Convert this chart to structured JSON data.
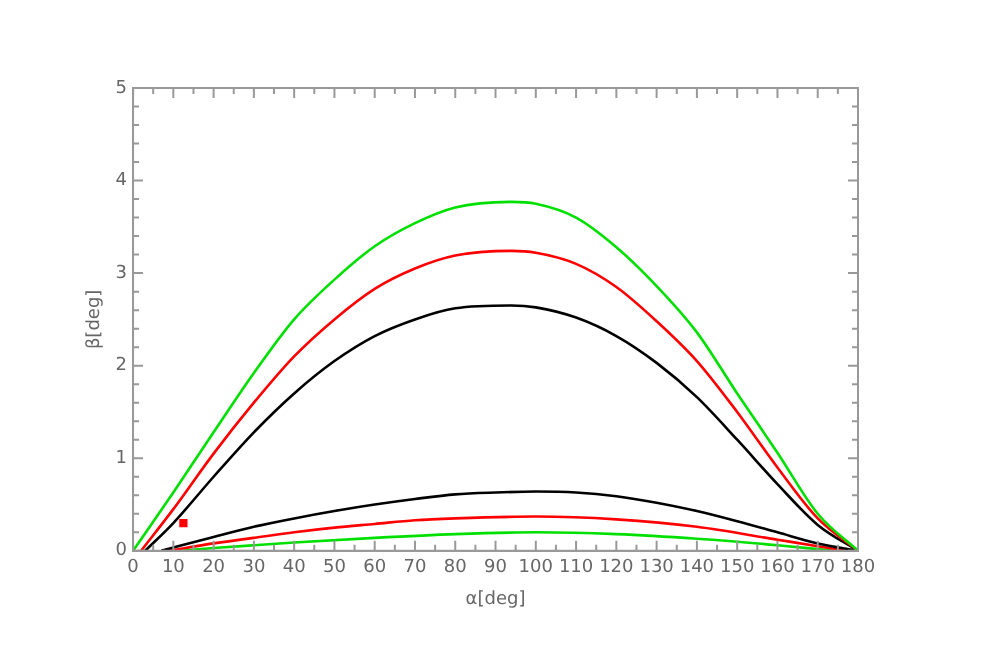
{
  "chart_data": {
    "type": "line",
    "xlabel": "α[deg]",
    "ylabel": "β[deg]",
    "xlim": [
      0,
      180
    ],
    "ylim": [
      0,
      5
    ],
    "xticks": [
      0,
      10,
      20,
      30,
      40,
      50,
      60,
      70,
      80,
      90,
      100,
      110,
      120,
      130,
      140,
      150,
      160,
      170,
      180
    ],
    "yticks": [
      0,
      1,
      2,
      3,
      4,
      5
    ],
    "grid": false,
    "legend": false,
    "marker": "none",
    "line_style": "solid",
    "series": [
      {
        "color": "#00e000",
        "x": [
          0,
          10,
          20,
          30,
          40,
          50,
          60,
          70,
          80,
          94,
          100,
          110,
          120,
          130,
          140,
          150,
          160,
          170,
          180
        ],
        "values": [
          0,
          0.63,
          1.28,
          1.92,
          2.5,
          2.93,
          3.29,
          3.54,
          3.71,
          3.77,
          3.75,
          3.6,
          3.28,
          2.86,
          2.36,
          1.7,
          1.06,
          0.4,
          0
        ]
      },
      {
        "color": "#ff0000",
        "x": [
          2,
          10,
          20,
          30,
          40,
          50,
          60,
          70,
          80,
          94,
          100,
          110,
          120,
          130,
          140,
          150,
          160,
          170,
          180
        ],
        "values": [
          0,
          0.45,
          1.05,
          1.6,
          2.1,
          2.5,
          2.83,
          3.05,
          3.19,
          3.24,
          3.22,
          3.1,
          2.85,
          2.48,
          2.05,
          1.5,
          0.9,
          0.35,
          0
        ]
      },
      {
        "color": "#000000",
        "x": [
          3,
          10,
          20,
          30,
          40,
          50,
          60,
          70,
          80,
          94,
          100,
          110,
          120,
          130,
          140,
          150,
          160,
          170,
          180
        ],
        "values": [
          0,
          0.3,
          0.8,
          1.28,
          1.7,
          2.05,
          2.32,
          2.5,
          2.62,
          2.65,
          2.63,
          2.52,
          2.32,
          2.03,
          1.66,
          1.2,
          0.72,
          0.28,
          0
        ]
      },
      {
        "color": "#000000",
        "x": [
          7,
          20,
          30,
          40,
          50,
          60,
          70,
          80,
          90,
          100,
          110,
          120,
          130,
          140,
          150,
          160,
          170,
          180
        ],
        "values": [
          0,
          0.15,
          0.26,
          0.35,
          0.43,
          0.5,
          0.56,
          0.61,
          0.63,
          0.64,
          0.63,
          0.59,
          0.52,
          0.43,
          0.32,
          0.2,
          0.08,
          0
        ]
      },
      {
        "color": "#ff0000",
        "x": [
          9,
          20,
          30,
          40,
          50,
          60,
          70,
          80,
          100,
          120,
          140,
          160,
          170,
          177
        ],
        "values": [
          0,
          0.08,
          0.14,
          0.2,
          0.25,
          0.29,
          0.33,
          0.35,
          0.37,
          0.34,
          0.26,
          0.12,
          0.05,
          0
        ]
      },
      {
        "color": "#00e000",
        "x": [
          12,
          20,
          40,
          60,
          80,
          100,
          120,
          140,
          160,
          174
        ],
        "values": [
          0,
          0.03,
          0.09,
          0.14,
          0.18,
          0.2,
          0.18,
          0.13,
          0.06,
          0
        ]
      },
      {
        "type": "scatter",
        "marker": "square",
        "color": "#ff0000",
        "x": [
          12.5
        ],
        "values": [
          0.3
        ]
      }
    ]
  }
}
